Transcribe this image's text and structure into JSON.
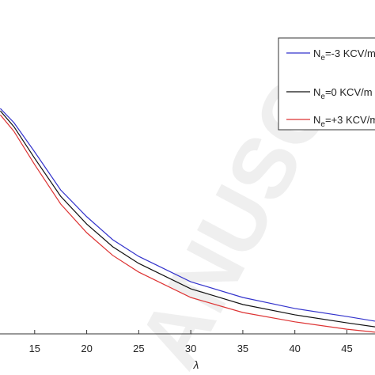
{
  "chart_data": {
    "type": "line",
    "x_label": "λ",
    "watermark": "ANUSC",
    "x": [
      11.7,
      13,
      15,
      17.5,
      20,
      22.5,
      25,
      30,
      35,
      40,
      45,
      47.7
    ],
    "xlim": [
      11.67,
      47.7
    ],
    "xticks": [
      15,
      20,
      25,
      30,
      35,
      40,
      45
    ],
    "ylim": [
      0,
      100
    ],
    "series": [
      {
        "name": {
          "main": "N",
          "sub": "e",
          "rest": "=-3 KCV/m"
        },
        "color": "#3333cc",
        "values": [
          67.5,
          63.3,
          54.5,
          43.1,
          35.1,
          28.2,
          23.2,
          15.6,
          10.9,
          7.6,
          5.2,
          3.8
        ]
      },
      {
        "name": {
          "main": "N",
          "sub": "e",
          "rest": "=0 KCV/m"
        },
        "color": "#111111",
        "values": [
          66.8,
          62.1,
          52.6,
          41.2,
          32.9,
          26.1,
          21.1,
          13.5,
          8.8,
          5.7,
          3.3,
          2.1
        ]
      },
      {
        "name": {
          "main": "N",
          "sub": "e",
          "rest": "=+3 KCV/m"
        },
        "color": "#dd3333",
        "values": [
          65.6,
          60.7,
          50.7,
          38.9,
          30.3,
          23.5,
          18.5,
          10.9,
          6.4,
          3.6,
          1.4,
          0.5
        ]
      }
    ]
  }
}
